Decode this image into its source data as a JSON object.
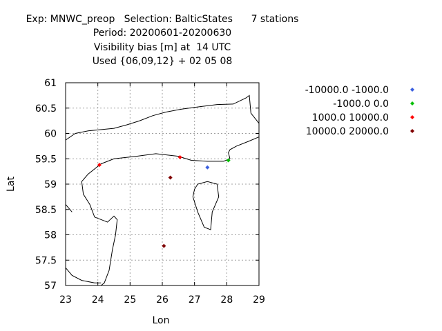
{
  "chart_data": {
    "type": "scatter",
    "title_lines": [
      "Exp: MNWC_preop   Selection: BalticStates      7 stations",
      "Period: 20200601-20200630",
      "Visibility bias [m] at  14 UTC",
      "Used {06,09,12} + 02 05 08"
    ],
    "xlabel": "Lon",
    "ylabel": "Lat",
    "xlim": [
      23,
      29
    ],
    "ylim": [
      57,
      61
    ],
    "xticks": [
      23,
      24,
      25,
      26,
      27,
      28,
      29
    ],
    "yticks": [
      57,
      57.5,
      58,
      58.5,
      59,
      59.5,
      60,
      60.5,
      61
    ],
    "ytick_labels": [
      "57",
      "57.5",
      "58",
      "58.5",
      "59",
      "59.5",
      "60",
      "60.5",
      "61"
    ],
    "grid": true,
    "legend_position": "right",
    "series": [
      {
        "name": "-10000.0 -1000.0",
        "color": "#3a5fe0",
        "points": [
          [
            27.4,
            59.33
          ]
        ]
      },
      {
        "name": "-1000.0 0.0",
        "color": "#00c000",
        "points": [
          [
            28.05,
            59.47
          ]
        ]
      },
      {
        "name": "1000.0 10000.0",
        "color": "#ff0000",
        "points": [
          [
            24.05,
            59.38
          ],
          [
            26.55,
            59.53
          ]
        ]
      },
      {
        "name": "10000.0 20000.0",
        "color": "#800000",
        "points": [
          [
            26.25,
            59.13
          ],
          [
            26.05,
            57.78
          ]
        ]
      }
    ],
    "coastlines": [
      [
        [
          23.0,
          59.87
        ],
        [
          23.3,
          60.0
        ],
        [
          23.7,
          60.05
        ],
        [
          24.5,
          60.1
        ],
        [
          24.9,
          60.17
        ],
        [
          25.3,
          60.25
        ],
        [
          25.7,
          60.35
        ],
        [
          26.1,
          60.42
        ],
        [
          26.6,
          60.48
        ],
        [
          27.2,
          60.53
        ],
        [
          27.7,
          60.57
        ],
        [
          28.2,
          60.58
        ],
        [
          28.6,
          60.7
        ],
        [
          28.7,
          60.75
        ],
        [
          28.75,
          60.4
        ],
        [
          29.0,
          60.2
        ]
      ],
      [
        [
          29.0,
          59.93
        ],
        [
          28.7,
          59.85
        ],
        [
          28.3,
          59.75
        ],
        [
          28.1,
          59.68
        ],
        [
          28.05,
          59.62
        ],
        [
          28.1,
          59.5
        ],
        [
          27.9,
          59.45
        ],
        [
          27.4,
          59.45
        ],
        [
          26.9,
          59.47
        ],
        [
          26.5,
          59.55
        ],
        [
          25.8,
          59.6
        ],
        [
          25.2,
          59.55
        ],
        [
          24.5,
          59.5
        ],
        [
          24.1,
          59.4
        ],
        [
          23.7,
          59.2
        ],
        [
          23.5,
          59.05
        ],
        [
          23.55,
          58.8
        ],
        [
          23.75,
          58.6
        ],
        [
          23.9,
          58.35
        ],
        [
          24.3,
          58.25
        ],
        [
          24.5,
          58.37
        ],
        [
          24.6,
          58.3
        ],
        [
          24.55,
          58.0
        ],
        [
          24.45,
          57.7
        ],
        [
          24.35,
          57.3
        ],
        [
          24.2,
          57.05
        ],
        [
          24.1,
          57.0
        ]
      ],
      [
        [
          23.0,
          57.35
        ],
        [
          23.2,
          57.2
        ],
        [
          23.5,
          57.1
        ],
        [
          23.9,
          57.05
        ],
        [
          24.1,
          57.05
        ]
      ],
      [
        [
          23.0,
          58.6
        ],
        [
          23.2,
          58.45
        ]
      ],
      [
        [
          27.0,
          58.9
        ],
        [
          27.1,
          59.0
        ],
        [
          27.4,
          59.05
        ],
        [
          27.7,
          59.0
        ],
        [
          27.75,
          58.75
        ],
        [
          27.55,
          58.45
        ],
        [
          27.5,
          58.1
        ],
        [
          27.3,
          58.15
        ],
        [
          27.1,
          58.45
        ],
        [
          26.95,
          58.75
        ],
        [
          27.0,
          58.9
        ]
      ]
    ]
  }
}
